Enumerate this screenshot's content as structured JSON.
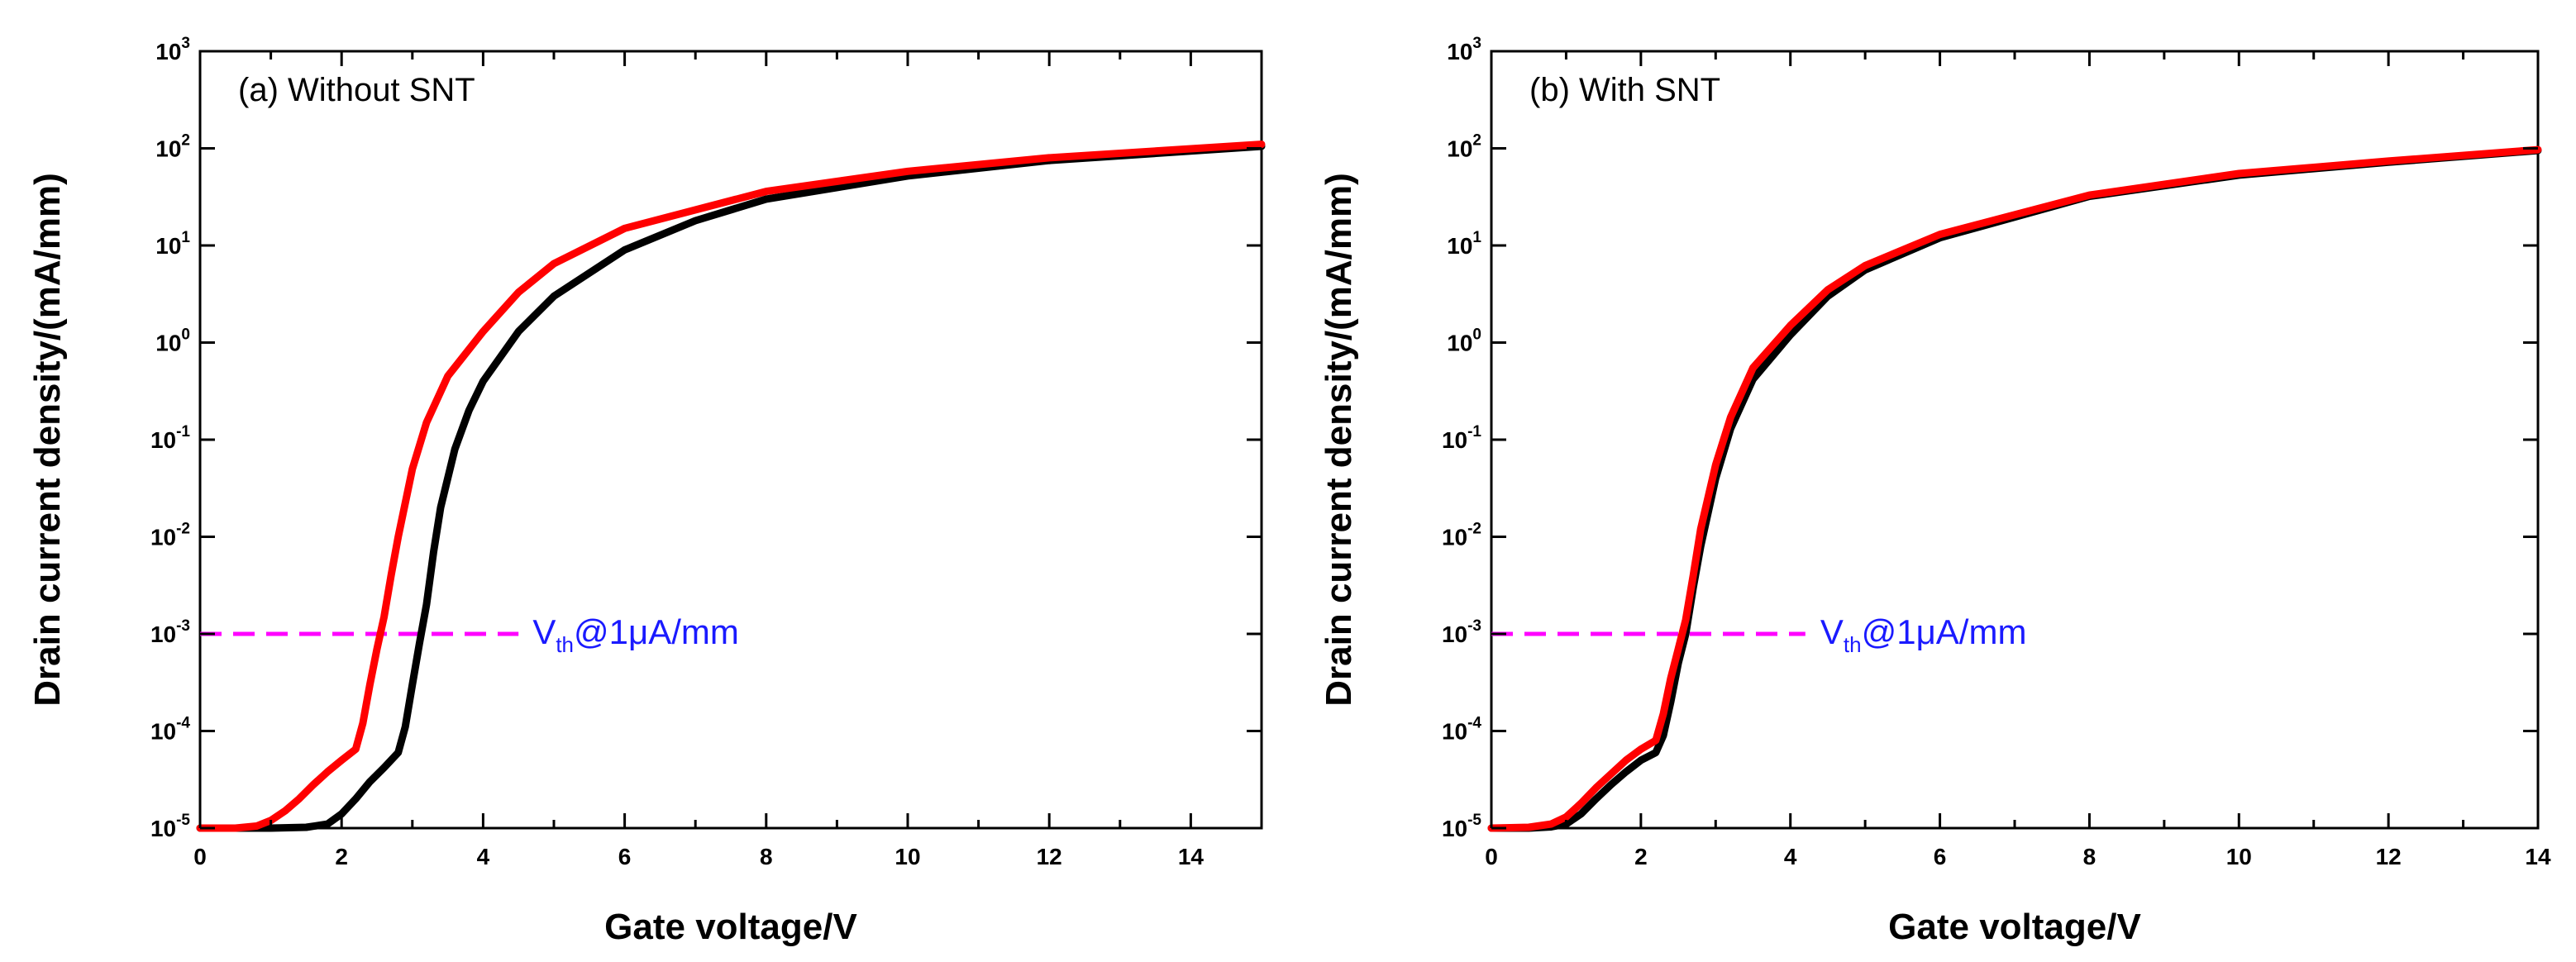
{
  "chart_data": [
    {
      "type": "line",
      "id": "a",
      "title": "(a) Without SNT",
      "xlabel": "Gate voltage/V",
      "ylabel": "Drain current density/(mA/mm)",
      "yscale": "log",
      "xlim": [
        0,
        15
      ],
      "ylim": [
        1e-05,
        1000
      ],
      "xticks": [
        "0",
        "2",
        "4",
        "6",
        "8",
        "10",
        "12",
        "14"
      ],
      "xtick_values": [
        0,
        2,
        4,
        6,
        8,
        10,
        12,
        14
      ],
      "yticks": [
        {
          "base": "10",
          "exp": "-5"
        },
        {
          "base": "10",
          "exp": "-4"
        },
        {
          "base": "10",
          "exp": "-3"
        },
        {
          "base": "10",
          "exp": "-2"
        },
        {
          "base": "10",
          "exp": "-1"
        },
        {
          "base": "10",
          "exp": "0"
        },
        {
          "base": "10",
          "exp": "1"
        },
        {
          "base": "10",
          "exp": "2"
        },
        {
          "base": "10",
          "exp": "3"
        }
      ],
      "ytick_values": [
        1e-05,
        0.0001,
        0.001,
        0.01,
        0.1,
        1,
        10,
        100,
        1000
      ],
      "threshold": {
        "value": 0.001,
        "x_end": 4.5,
        "color": "#ff00ff"
      },
      "annotation": {
        "main": "V",
        "sub": "th",
        "rest": "@1μA/mm",
        "color": "#1a1aff",
        "x": 4.7,
        "y": 0.001
      },
      "series": [
        {
          "name": "black",
          "color": "#000000",
          "x": [
            0,
            1.0,
            1.5,
            1.8,
            2.0,
            2.2,
            2.4,
            2.6,
            2.8,
            2.9,
            3.0,
            3.1,
            3.2,
            3.3,
            3.4,
            3.6,
            3.8,
            4.0,
            4.5,
            5.0,
            6.0,
            7.0,
            8.0,
            10.0,
            12.0,
            15.0
          ],
          "y": [
            1e-05,
            1e-05,
            1.02e-05,
            1.1e-05,
            1.4e-05,
            2e-05,
            3e-05,
            4.2e-05,
            6e-05,
            0.00011,
            0.0003,
            0.0008,
            0.002,
            0.007,
            0.02,
            0.08,
            0.2,
            0.4,
            1.3,
            3,
            9,
            18,
            30,
            52,
            75,
            105
          ]
        },
        {
          "name": "red",
          "color": "#ff0000",
          "x": [
            0,
            0.5,
            0.8,
            1.0,
            1.2,
            1.4,
            1.6,
            1.8,
            2.0,
            2.2,
            2.3,
            2.4,
            2.5,
            2.6,
            2.7,
            2.8,
            3.0,
            3.2,
            3.5,
            4.0,
            4.5,
            5.0,
            6.0,
            8.0,
            10.0,
            12.0,
            15.0
          ],
          "y": [
            1e-05,
            1e-05,
            1.05e-05,
            1.2e-05,
            1.5e-05,
            2e-05,
            2.8e-05,
            3.8e-05,
            5e-05,
            6.5e-05,
            0.00012,
            0.0003,
            0.0007,
            0.0015,
            0.004,
            0.01,
            0.05,
            0.15,
            0.45,
            1.3,
            3.3,
            6.5,
            15,
            36,
            58,
            80,
            110
          ]
        }
      ]
    },
    {
      "type": "line",
      "id": "b",
      "title": "(b) With SNT",
      "xlabel": "Gate voltage/V",
      "ylabel": "Drain current density/(mA/mm)",
      "yscale": "log",
      "xlim": [
        0,
        14
      ],
      "ylim": [
        1e-05,
        1000
      ],
      "xticks": [
        "0",
        "2",
        "4",
        "6",
        "8",
        "10",
        "12",
        "14"
      ],
      "xtick_values": [
        0,
        2,
        4,
        6,
        8,
        10,
        12,
        14
      ],
      "yticks": [
        {
          "base": "10",
          "exp": "-5"
        },
        {
          "base": "10",
          "exp": "-4"
        },
        {
          "base": "10",
          "exp": "-3"
        },
        {
          "base": "10",
          "exp": "-2"
        },
        {
          "base": "10",
          "exp": "-1"
        },
        {
          "base": "10",
          "exp": "0"
        },
        {
          "base": "10",
          "exp": "1"
        },
        {
          "base": "10",
          "exp": "2"
        },
        {
          "base": "10",
          "exp": "3"
        }
      ],
      "ytick_values": [
        1e-05,
        0.0001,
        0.001,
        0.01,
        0.1,
        1,
        10,
        100,
        1000
      ],
      "threshold": {
        "value": 0.001,
        "x_end": 4.2,
        "color": "#ff00ff"
      },
      "annotation": {
        "main": "V",
        "sub": "th",
        "rest": "@1μA/mm",
        "color": "#1a1aff",
        "x": 4.4,
        "y": 0.001
      },
      "series": [
        {
          "name": "black",
          "color": "#000000",
          "x": [
            0,
            0.5,
            0.8,
            1.0,
            1.2,
            1.4,
            1.6,
            1.8,
            2.0,
            2.2,
            2.3,
            2.4,
            2.5,
            2.6,
            2.7,
            2.8,
            3.0,
            3.2,
            3.5,
            4.0,
            4.5,
            5.0,
            6.0,
            8.0,
            10.0,
            12.0,
            14.0
          ],
          "y": [
            1e-05,
            1e-05,
            1.03e-05,
            1.1e-05,
            1.4e-05,
            2e-05,
            2.8e-05,
            3.8e-05,
            5e-05,
            6e-05,
            9e-05,
            0.0002,
            0.0005,
            0.001,
            0.003,
            0.008,
            0.04,
            0.13,
            0.42,
            1.2,
            3,
            5.6,
            12,
            32,
            53,
            72,
            95
          ]
        },
        {
          "name": "red",
          "color": "#ff0000",
          "x": [
            0,
            0.5,
            0.8,
            1.0,
            1.2,
            1.4,
            1.6,
            1.8,
            2.0,
            2.2,
            2.3,
            2.4,
            2.5,
            2.6,
            2.7,
            2.8,
            3.0,
            3.2,
            3.5,
            4.0,
            4.5,
            5.0,
            6.0,
            8.0,
            10.0,
            12.0,
            14.0
          ],
          "y": [
            1e-05,
            1.02e-05,
            1.1e-05,
            1.3e-05,
            1.8e-05,
            2.6e-05,
            3.6e-05,
            5e-05,
            6.5e-05,
            8e-05,
            0.00015,
            0.00035,
            0.0007,
            0.0014,
            0.004,
            0.012,
            0.055,
            0.17,
            0.55,
            1.5,
            3.5,
            6.2,
            13,
            33,
            55,
            74,
            97
          ]
        }
      ]
    }
  ]
}
